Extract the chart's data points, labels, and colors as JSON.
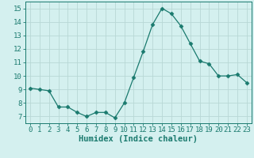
{
  "x": [
    0,
    1,
    2,
    3,
    4,
    5,
    6,
    7,
    8,
    9,
    10,
    11,
    12,
    13,
    14,
    15,
    16,
    17,
    18,
    19,
    20,
    21,
    22,
    23
  ],
  "y": [
    9.1,
    9.0,
    8.9,
    7.7,
    7.7,
    7.3,
    7.0,
    7.3,
    7.3,
    6.9,
    8.0,
    9.9,
    11.8,
    13.8,
    15.0,
    14.6,
    13.7,
    12.4,
    11.1,
    10.9,
    10.0,
    10.0,
    10.1,
    9.5
  ],
  "line_color": "#1a7a6e",
  "marker": "D",
  "marker_size": 2.5,
  "bg_color": "#d4f0ef",
  "grid_color": "#b8d8d5",
  "xlabel": "Humidex (Indice chaleur)",
  "xlim": [
    -0.5,
    23.5
  ],
  "ylim": [
    6.5,
    15.5
  ],
  "yticks": [
    7,
    8,
    9,
    10,
    11,
    12,
    13,
    14,
    15
  ],
  "xticks": [
    0,
    1,
    2,
    3,
    4,
    5,
    6,
    7,
    8,
    9,
    10,
    11,
    12,
    13,
    14,
    15,
    16,
    17,
    18,
    19,
    20,
    21,
    22,
    23
  ],
  "tick_fontsize": 6.5,
  "label_fontsize": 7.5
}
